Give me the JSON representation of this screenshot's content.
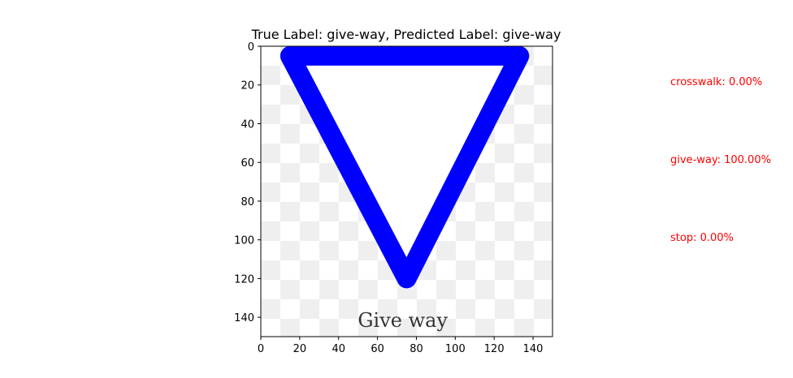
{
  "chart_data": {
    "type": "image",
    "title": "True Label: give-way, Predicted Label: give-way",
    "xlim": [
      0,
      150
    ],
    "ylim": [
      150,
      0
    ],
    "x_ticks": [
      0,
      20,
      40,
      60,
      80,
      100,
      120,
      140
    ],
    "y_ticks": [
      0,
      20,
      40,
      60,
      80,
      100,
      120,
      140
    ],
    "image_text": "Give way",
    "sign": {
      "shape": "inverted-triangle",
      "vertices": [
        [
          15,
          5
        ],
        [
          133,
          5
        ],
        [
          75,
          120
        ]
      ],
      "stroke_color": "#0000ff",
      "fill_color": "#ffffff"
    },
    "annotations": [
      {
        "text": "crosswalk: 0.00%",
        "value": 0.0,
        "color": "#ff0000"
      },
      {
        "text": "give-way: 100.00%",
        "value": 100.0,
        "color": "#ff0000"
      },
      {
        "text": "stop: 0.00%",
        "value": 0.0,
        "color": "#ff0000"
      }
    ]
  }
}
